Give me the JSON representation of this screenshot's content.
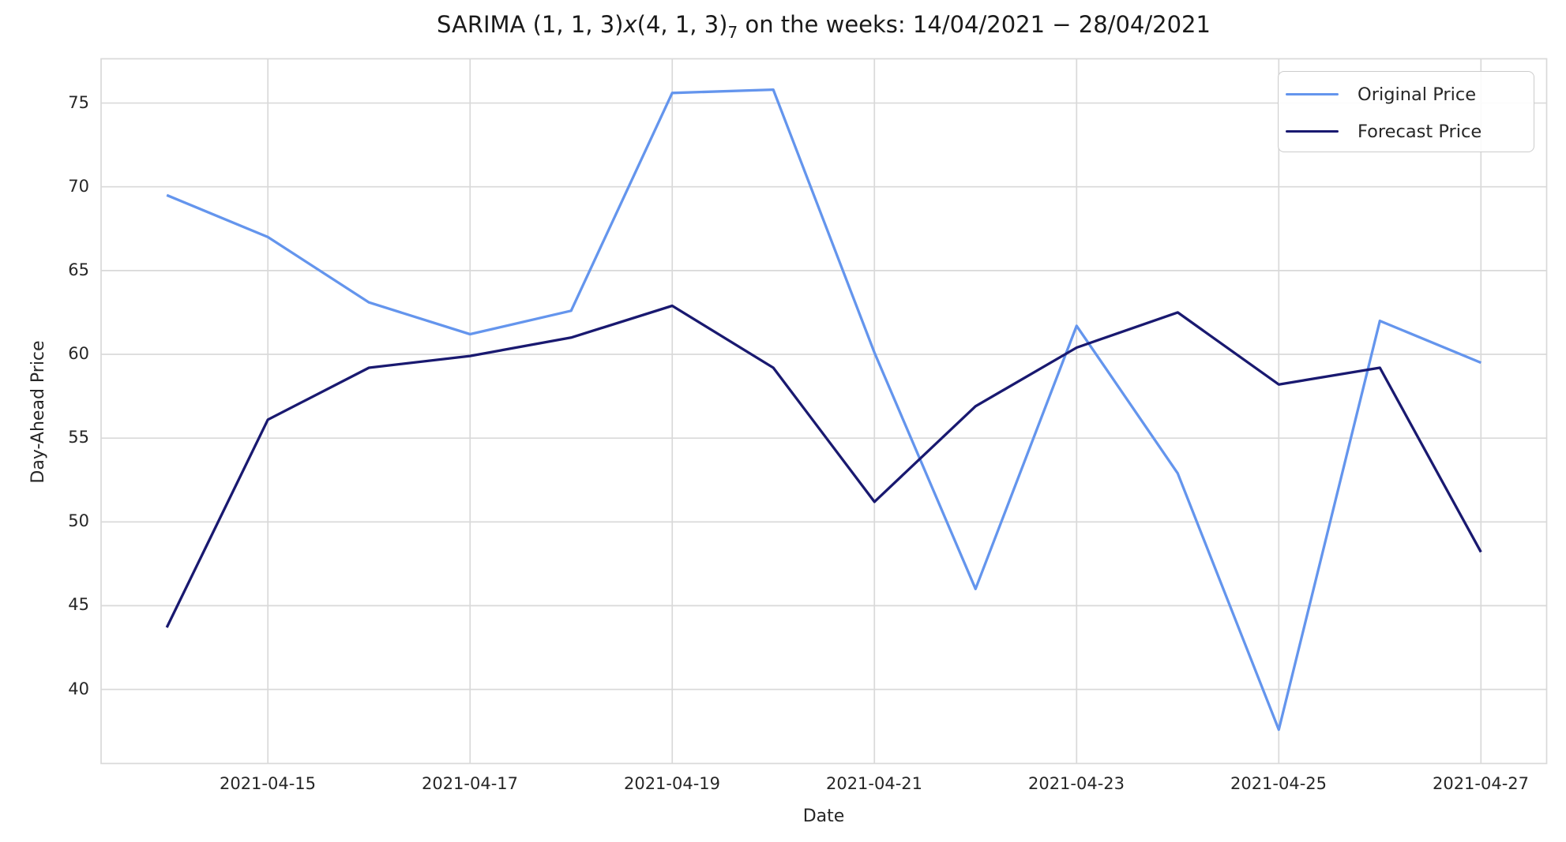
{
  "figure": {
    "title": {
      "t1": "SARIMA (1, 1, 3)",
      "t2": "x",
      "t3": "(4, 1, 3)",
      "t4": "7",
      "t5": " on the weeks: 14/04/2021 − 28/04/2021"
    }
  },
  "chart_data": {
    "type": "line",
    "title": "SARIMA (1, 1, 3)x(4, 1, 3)_7 on the weeks: 14/04/2021 − 28/04/2021",
    "xlabel": "Date",
    "ylabel": "Day-Ahead Price",
    "x": [
      "2021-04-14",
      "2021-04-15",
      "2021-04-16",
      "2021-04-17",
      "2021-04-18",
      "2021-04-19",
      "2021-04-20",
      "2021-04-21",
      "2021-04-22",
      "2021-04-23",
      "2021-04-24",
      "2021-04-25",
      "2021-04-26",
      "2021-04-27"
    ],
    "series": [
      {
        "name": "Original Price",
        "color": "#6495ED",
        "values": [
          69.5,
          67.0,
          63.1,
          61.2,
          62.6,
          75.6,
          75.8,
          60.1,
          46.0,
          61.7,
          52.9,
          37.6,
          62.0,
          59.5
        ]
      },
      {
        "name": "Forecast Price",
        "color": "#191970",
        "values": [
          43.7,
          56.1,
          59.2,
          59.9,
          61.0,
          62.9,
          59.2,
          51.2,
          56.9,
          60.4,
          62.5,
          58.2,
          59.2,
          48.2
        ]
      }
    ],
    "y_ticks": [
      40,
      45,
      50,
      55,
      60,
      65,
      70,
      75
    ],
    "x_tick_labels": [
      "2021-04-15",
      "2021-04-17",
      "2021-04-19",
      "2021-04-21",
      "2021-04-23",
      "2021-04-25",
      "2021-04-27"
    ],
    "x_tick_indices": [
      1,
      3,
      5,
      7,
      9,
      11,
      13
    ],
    "ylim": [
      35.58,
      77.64
    ],
    "grid": true,
    "legend_position": "upper right",
    "colors": {
      "grid": "#d9d9d9",
      "spine": "#d9d9d9",
      "text": "#262626",
      "background": "#ffffff"
    }
  }
}
